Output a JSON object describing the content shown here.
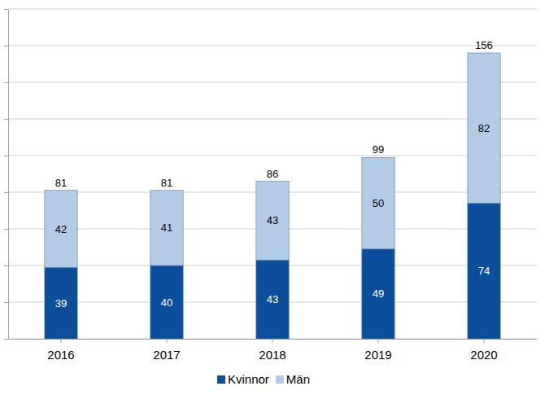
{
  "chart_data": {
    "type": "bar",
    "stacked": true,
    "data_labels": true,
    "grid": true,
    "tick_labels": "x",
    "legend": "bottom",
    "categories": [
      "2016",
      "2017",
      "2018",
      "2019",
      "2020"
    ],
    "series": [
      {
        "name": "Kvinnor",
        "color": "#0b4f9c",
        "values": [
          39,
          40,
          43,
          49,
          74
        ]
      },
      {
        "name": "Män",
        "color": "#b4cbe6",
        "values": [
          42,
          41,
          43,
          50,
          82
        ]
      }
    ],
    "totals": [
      81,
      81,
      86,
      99,
      156
    ],
    "ylim": [
      0,
      180
    ],
    "yticks": [
      0,
      20,
      40,
      60,
      80,
      100,
      120,
      140,
      160,
      180
    ]
  }
}
